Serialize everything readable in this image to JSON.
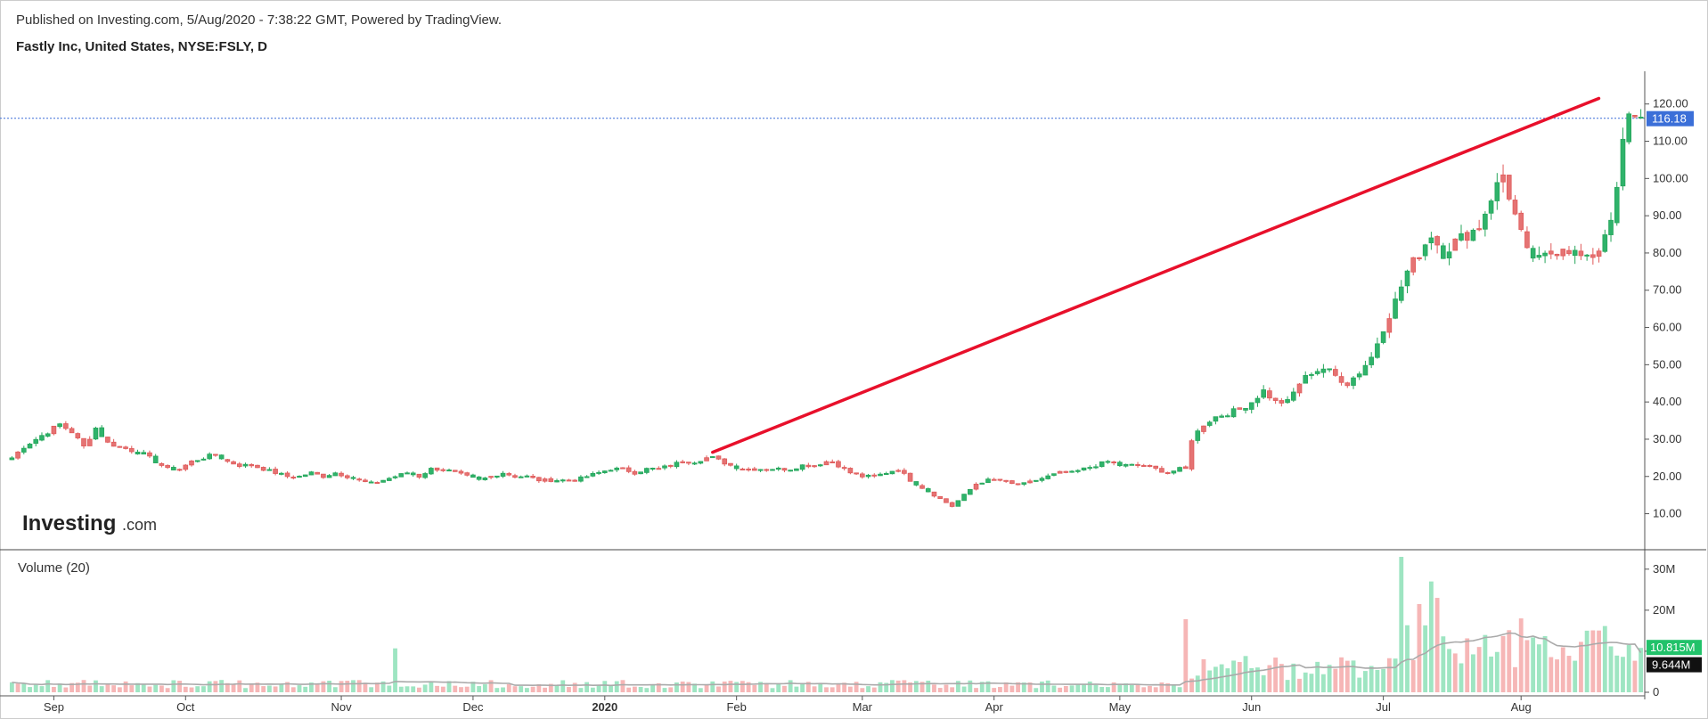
{
  "header": {
    "published": "Published on Investing.com, 5/Aug/2020 - 7:38:22 GMT, Powered by TradingView.",
    "symbol": "Fastly Inc, United States, NYSE:FSLY, D"
  },
  "logo": {
    "main": "Investing",
    "suffix": ".com"
  },
  "volume_panel": {
    "title": "Volume (20)",
    "last_volume_label": "10.815M",
    "ma_label": "9.644M"
  },
  "price_badge": "116.18",
  "colors": {
    "up": "#26a65b",
    "down": "#e05a5a",
    "up_fill": "#2fb36b",
    "down_fill": "#e57373",
    "vol_up": "#9ee5c2",
    "vol_down": "#f6b6b6",
    "trendline": "#e8102b",
    "badge": "#3b6fd8",
    "vol_badge": "#21c26a",
    "ma_line": "#aaaaaa"
  },
  "chart_data": {
    "type": "candlestick",
    "title": "Fastly Inc, United States, NYSE:FSLY, D",
    "price_ticks": [
      "120.00",
      "110.00",
      "100.00",
      "90.00",
      "80.00",
      "70.00",
      "60.00",
      "50.00",
      "40.00",
      "30.00",
      "20.00",
      "10.00"
    ],
    "price_tick_values": [
      120,
      110,
      100,
      90,
      80,
      70,
      60,
      50,
      40,
      30,
      20,
      10
    ],
    "ylim": [
      3.2,
      124
    ],
    "volume_ticks": [
      "30M",
      "20M",
      "10M",
      "0"
    ],
    "volume_tick_values": [
      30,
      20,
      10,
      0
    ],
    "volume_ylim": [
      0,
      33
    ],
    "x_labels": [
      "Sep",
      "Oct",
      "Nov",
      "Dec",
      "2020",
      "Feb",
      "Mar",
      "Apr",
      "May",
      "Jun",
      "Jul",
      "Aug"
    ],
    "x_label_bold": [
      "2020"
    ],
    "x_label_bar_index": [
      7,
      29,
      55,
      77,
      99,
      121,
      142,
      164,
      185,
      207,
      229,
      252
    ],
    "last_price": 116.18,
    "last_volume_m": 10.815,
    "volume_ma_m": 9.644,
    "trendline": {
      "from_bar": 117,
      "from_price": 26.5,
      "to_bar": 262,
      "to_price": 121.5
    },
    "price_anchors": [
      [
        0,
        25
      ],
      [
        2,
        28
      ],
      [
        4,
        30
      ],
      [
        6,
        32
      ],
      [
        8,
        34
      ],
      [
        10,
        32
      ],
      [
        12,
        28
      ],
      [
        14,
        33
      ],
      [
        16,
        29
      ],
      [
        18,
        28
      ],
      [
        20,
        27
      ],
      [
        22,
        26
      ],
      [
        24,
        24
      ],
      [
        26,
        22
      ],
      [
        28,
        22
      ],
      [
        30,
        24
      ],
      [
        32,
        25
      ],
      [
        34,
        26
      ],
      [
        36,
        24
      ],
      [
        38,
        23
      ],
      [
        40,
        23
      ],
      [
        42,
        22
      ],
      [
        44,
        21
      ],
      [
        46,
        20
      ],
      [
        48,
        20
      ],
      [
        50,
        21
      ],
      [
        52,
        20
      ],
      [
        54,
        21
      ],
      [
        56,
        20
      ],
      [
        58,
        19
      ],
      [
        60,
        18
      ],
      [
        62,
        19
      ],
      [
        64,
        20
      ],
      [
        66,
        21
      ],
      [
        68,
        20
      ],
      [
        70,
        22
      ],
      [
        72,
        22
      ],
      [
        74,
        21
      ],
      [
        76,
        20
      ],
      [
        78,
        19
      ],
      [
        80,
        20
      ],
      [
        82,
        21
      ],
      [
        84,
        20
      ],
      [
        86,
        20
      ],
      [
        88,
        19
      ],
      [
        90,
        19
      ],
      [
        92,
        19
      ],
      [
        94,
        19
      ],
      [
        96,
        20
      ],
      [
        98,
        21
      ],
      [
        100,
        22
      ],
      [
        102,
        22
      ],
      [
        104,
        21
      ],
      [
        106,
        22
      ],
      [
        108,
        22
      ],
      [
        110,
        23
      ],
      [
        112,
        24
      ],
      [
        114,
        24
      ],
      [
        116,
        25
      ],
      [
        117,
        25
      ],
      [
        120,
        23
      ],
      [
        122,
        22
      ],
      [
        124,
        22
      ],
      [
        126,
        22
      ],
      [
        128,
        22
      ],
      [
        130,
        22
      ],
      [
        132,
        23
      ],
      [
        134,
        23
      ],
      [
        136,
        24
      ],
      [
        137,
        24
      ],
      [
        140,
        21
      ],
      [
        142,
        20
      ],
      [
        144,
        20
      ],
      [
        146,
        21
      ],
      [
        148,
        22
      ],
      [
        150,
        19
      ],
      [
        152,
        17
      ],
      [
        154,
        15
      ],
      [
        156,
        13
      ],
      [
        157,
        12
      ],
      [
        159,
        15
      ],
      [
        161,
        18
      ],
      [
        163,
        19
      ],
      [
        165,
        19
      ],
      [
        167,
        18
      ],
      [
        169,
        18
      ],
      [
        171,
        19
      ],
      [
        173,
        20
      ],
      [
        175,
        21
      ],
      [
        177,
        21
      ],
      [
        179,
        22
      ],
      [
        181,
        23
      ],
      [
        183,
        24
      ],
      [
        185,
        23
      ],
      [
        187,
        23
      ],
      [
        189,
        23
      ],
      [
        191,
        22
      ],
      [
        193,
        21
      ],
      [
        195,
        22
      ],
      [
        196,
        22
      ],
      [
        197,
        30
      ],
      [
        199,
        34
      ],
      [
        201,
        36
      ],
      [
        203,
        37
      ],
      [
        205,
        38
      ],
      [
        207,
        40
      ],
      [
        209,
        43
      ],
      [
        211,
        40
      ],
      [
        213,
        40
      ],
      [
        215,
        45
      ],
      [
        217,
        48
      ],
      [
        219,
        49
      ],
      [
        221,
        47
      ],
      [
        223,
        45
      ],
      [
        225,
        48
      ],
      [
        227,
        52
      ],
      [
        229,
        60
      ],
      [
        231,
        67
      ],
      [
        233,
        75
      ],
      [
        235,
        80
      ],
      [
        237,
        85
      ],
      [
        239,
        80
      ],
      [
        241,
        83
      ],
      [
        243,
        85
      ],
      [
        245,
        87
      ],
      [
        247,
        95
      ],
      [
        249,
        101
      ],
      [
        251,
        90
      ],
      [
        253,
        80
      ],
      [
        255,
        78
      ],
      [
        257,
        80
      ],
      [
        259,
        82
      ],
      [
        261,
        80
      ],
      [
        263,
        78
      ],
      [
        265,
        81
      ],
      [
        267,
        90
      ],
      [
        268,
        96
      ],
      [
        269,
        110
      ],
      [
        270,
        116
      ]
    ]
  }
}
